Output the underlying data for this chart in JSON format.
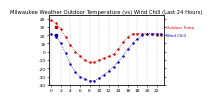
{
  "title": "Milwaukee Weather Outdoor Temperature (vs) Wind Chill (Last 24 Hours)",
  "outdoor_temp": [
    38,
    35,
    28,
    18,
    8,
    0,
    -5,
    -10,
    -13,
    -13,
    -10,
    -8,
    -5,
    -3,
    3,
    12,
    18,
    22,
    22,
    22,
    22,
    22,
    20,
    20
  ],
  "wind_chill": [
    22,
    18,
    10,
    -2,
    -15,
    -25,
    -30,
    -33,
    -35,
    -35,
    -32,
    -28,
    -23,
    -18,
    -12,
    -5,
    3,
    10,
    16,
    20,
    22,
    22,
    22,
    22
  ],
  "temp_color": "#cc0000",
  "wind_color": "#0000bb",
  "ylim": [
    -40,
    45
  ],
  "xlim": [
    -0.5,
    23.5
  ],
  "ytick_vals": [
    40,
    30,
    20,
    10,
    0,
    -10,
    -20,
    -30,
    -40
  ],
  "background_color": "#ffffff",
  "grid_color": "#999999",
  "title_fontsize": 3.8,
  "tick_fontsize": 3.2,
  "legend_labels": [
    "Outdoor Temp",
    "Wind Chill"
  ]
}
